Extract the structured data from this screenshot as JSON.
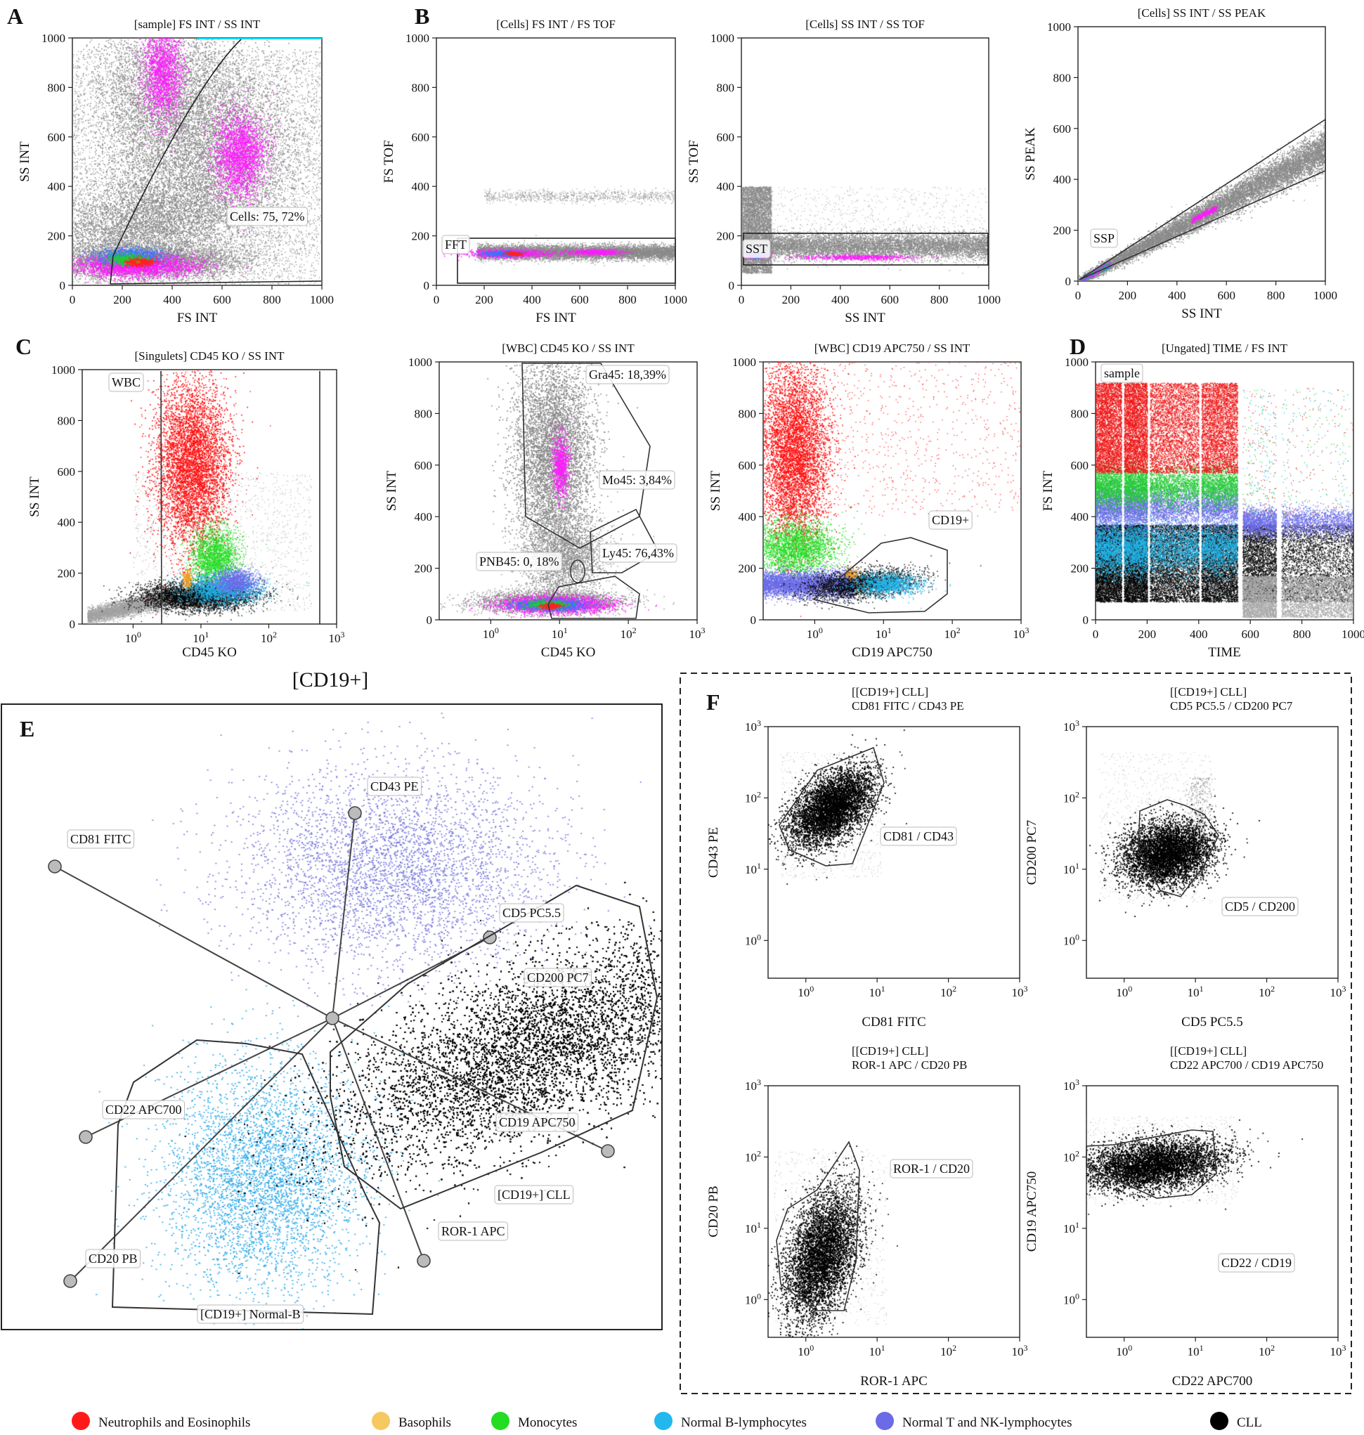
{
  "panel_letters": [
    "A",
    "B",
    "C",
    "D",
    "E",
    "F"
  ],
  "header_cd19": "[CD19+]",
  "legend": [
    {
      "label": "Neutrophils and Eosinophils",
      "color": "#ff1a1a"
    },
    {
      "label": "Basophils",
      "color": "#f5c860"
    },
    {
      "label": "Monocytes",
      "color": "#22dd22"
    },
    {
      "label": "Normal B-lymphocytes",
      "color": "#22b8ee"
    },
    {
      "label": "Normal T and NK-lymphocytes",
      "color": "#6b6be8"
    },
    {
      "label": "CLL",
      "color": "#000000"
    }
  ],
  "chart_data": [
    {
      "id": "A1",
      "type": "scatter",
      "title": "[sample] FS INT / SS INT",
      "xlabel": "FS INT",
      "ylabel": "SS INT",
      "xlim": [
        0,
        1000
      ],
      "ylim": [
        0,
        1000
      ],
      "xticks": [
        "0",
        "200",
        "400",
        "600",
        "800",
        "1000"
      ],
      "yticks": [
        "0",
        "200",
        "400",
        "600",
        "800",
        "1000"
      ],
      "gates": [
        {
          "label": "Cells: 75, 72%"
        }
      ]
    },
    {
      "id": "B1",
      "type": "scatter",
      "title": "[Cells] FS INT / FS TOF",
      "xlabel": "FS INT",
      "ylabel": "FS TOF",
      "xlim": [
        0,
        1000
      ],
      "ylim": [
        0,
        1000
      ],
      "xticks": [
        "0",
        "200",
        "400",
        "600",
        "800",
        "1000"
      ],
      "yticks": [
        "0",
        "200",
        "400",
        "600",
        "800",
        "1000"
      ],
      "gates": [
        {
          "label": "FFT"
        }
      ]
    },
    {
      "id": "B2",
      "type": "scatter",
      "title": "[Cells] SS INT / SS TOF",
      "xlabel": "SS INT",
      "ylabel": "SS TOF",
      "xlim": [
        0,
        1000
      ],
      "ylim": [
        0,
        1000
      ],
      "xticks": [
        "0",
        "200",
        "400",
        "600",
        "800",
        "1000"
      ],
      "yticks": [
        "0",
        "200",
        "400",
        "600",
        "800",
        "1000"
      ],
      "gates": [
        {
          "label": "SST"
        }
      ]
    },
    {
      "id": "B3",
      "type": "scatter",
      "title": "[Cells] SS INT / SS PEAK",
      "xlabel": "SS INT",
      "ylabel": "SS PEAK",
      "xlim": [
        0,
        1000
      ],
      "ylim": [
        0,
        1000
      ],
      "xticks": [
        "0",
        "200",
        "400",
        "600",
        "800",
        "1000"
      ],
      "yticks": [
        "0",
        "200",
        "400",
        "600",
        "800",
        "1000"
      ],
      "gates": [
        {
          "label": "SSP"
        }
      ]
    },
    {
      "id": "C1",
      "type": "scatter",
      "title": "[Singulets] CD45 KO / SS INT",
      "xlabel": "CD45 KO",
      "ylabel": "SS INT",
      "ylim": [
        0,
        1000
      ],
      "xticks": [
        "10^0",
        "10^1",
        "10^2",
        "10^3"
      ],
      "yticks": [
        "0",
        "200",
        "400",
        "600",
        "800",
        "1000"
      ],
      "gates": [
        {
          "label": "WBC"
        }
      ]
    },
    {
      "id": "C2",
      "type": "scatter",
      "title": "[WBC] CD45 KO / SS INT",
      "xlabel": "CD45 KO",
      "ylabel": "SS INT",
      "ylim": [
        0,
        1000
      ],
      "xticks": [
        "10^0",
        "10^1",
        "10^2",
        "10^3"
      ],
      "yticks": [
        "0",
        "200",
        "400",
        "600",
        "800",
        "1000"
      ],
      "gates": [
        {
          "label": "Gra45: 18,39%",
          "percent": 18.39
        },
        {
          "label": "Mo45: 3,84%",
          "percent": 3.84
        },
        {
          "label": "Ly45: 76,43%",
          "percent": 76.43
        },
        {
          "label": "PNB45: 0, 18%",
          "percent": 0.18
        }
      ]
    },
    {
      "id": "C3",
      "type": "scatter",
      "title": "[WBC] CD19 APC750 / SS INT",
      "xlabel": "CD19 APC750",
      "ylabel": "SS INT",
      "ylim": [
        0,
        1000
      ],
      "xticks": [
        "10^0",
        "10^1",
        "10^2",
        "10^3"
      ],
      "yticks": [
        "0",
        "200",
        "400",
        "600",
        "800",
        "1000"
      ],
      "gates": [
        {
          "label": "CD19+"
        }
      ]
    },
    {
      "id": "D1",
      "type": "scatter",
      "title": "[Ungated] TIME / FS INT",
      "xlabel": "TIME",
      "ylabel": "FS INT",
      "xlim": [
        0,
        1000
      ],
      "ylim": [
        0,
        1000
      ],
      "xticks": [
        "0",
        "200",
        "400",
        "600",
        "800",
        "1000"
      ],
      "yticks": [
        "0",
        "200",
        "400",
        "600",
        "800",
        "1000"
      ],
      "gates": [
        {
          "label": "sample"
        }
      ]
    },
    {
      "id": "E",
      "type": "radar",
      "axes": [
        "CD43 PE",
        "CD81 FITC",
        "CD5 PC5.5",
        "CD200 PC7",
        "CD22 APC700",
        "CD19 APC750",
        "CD20 PB",
        "ROR-1 APC"
      ],
      "gates": [
        {
          "label": "[CD19+] CLL"
        },
        {
          "label": "[CD19+] Normal-B"
        }
      ]
    },
    {
      "id": "F1",
      "type": "scatter",
      "title_line1": "[[CD19+] CLL]",
      "title_line2": "CD81 FITC / CD43 PE",
      "xlabel": "CD81 FITC",
      "ylabel": "CD43 PE",
      "xticks": [
        "10^0",
        "10^1",
        "10^2",
        "10^3"
      ],
      "yticks": [
        "10^0",
        "10^1",
        "10^2",
        "10^3"
      ],
      "gates": [
        {
          "label": "CD81 / CD43"
        }
      ]
    },
    {
      "id": "F2",
      "type": "scatter",
      "title_line1": "[[CD19+] CLL]",
      "title_line2": "CD5 PC5.5 / CD200 PC7",
      "xlabel": "CD5 PC5.5",
      "ylabel": "CD200 PC7",
      "xticks": [
        "10^0",
        "10^1",
        "10^2",
        "10^3"
      ],
      "yticks": [
        "10^0",
        "10^1",
        "10^2",
        "10^3"
      ],
      "gates": [
        {
          "label": "CD5 / CD200"
        }
      ]
    },
    {
      "id": "F3",
      "type": "scatter",
      "title_line1": "[[CD19+] CLL]",
      "title_line2": "ROR-1 APC / CD20 PB",
      "xlabel": "ROR-1 APC",
      "ylabel": "CD20 PB",
      "xticks": [
        "10^0",
        "10^1",
        "10^2",
        "10^3"
      ],
      "yticks": [
        "10^0",
        "10^1",
        "10^2",
        "10^3"
      ],
      "gates": [
        {
          "label": "ROR-1 / CD20"
        }
      ]
    },
    {
      "id": "F4",
      "type": "scatter",
      "title_line1": "[[CD19+] CLL]",
      "title_line2": "CD22 APC700 / CD19 APC750",
      "xlabel": "CD22 APC700",
      "ylabel": "CD19 APC750",
      "xticks": [
        "10^0",
        "10^1",
        "10^2",
        "10^3"
      ],
      "yticks": [
        "10^0",
        "10^1",
        "10^2",
        "10^3"
      ],
      "gates": [
        {
          "label": "CD22 / CD19"
        }
      ]
    }
  ]
}
